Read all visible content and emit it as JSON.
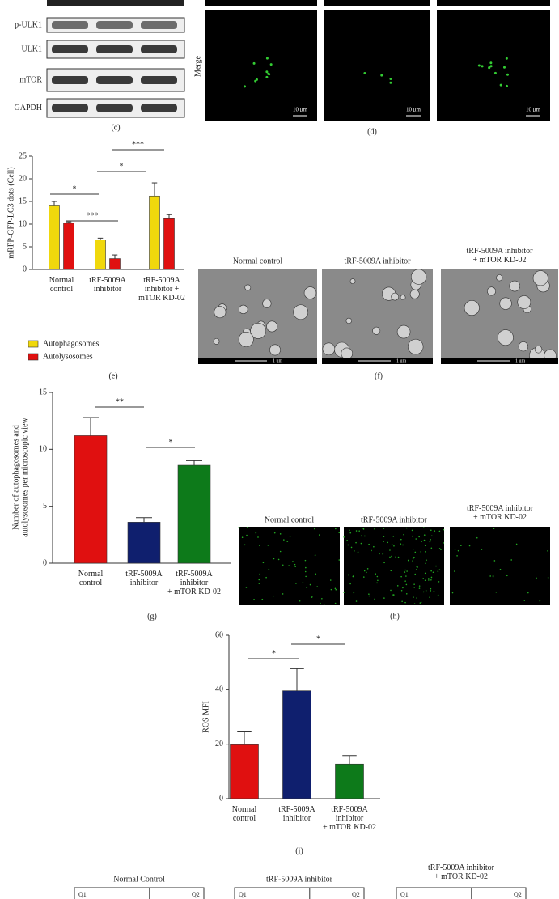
{
  "panel_c": {
    "rows": [
      "p-ULK1",
      "ULK1",
      "mTOR",
      "GAPDH"
    ],
    "caption": "(c)"
  },
  "panel_d": {
    "row_label": "Merge",
    "scale_bar": "10 μm",
    "caption": "(d)"
  },
  "chart_data": [
    {
      "type": "bar",
      "ylabel": "mRFP-GFP-LC3 dots (Cell)",
      "categories": [
        "Normal\ncontrol",
        "tRF-5009A\ninhibitor",
        "tRF-5009A\ninhibitor +\nmTOR KD-02"
      ],
      "series": [
        {
          "name": "Autophagosomes",
          "color": "#f0d80c",
          "values": [
            14.2,
            6.5,
            16.2
          ],
          "errors": [
            0.8,
            0.4,
            2.9
          ]
        },
        {
          "name": "Autolysosomes",
          "color": "#e01010",
          "values": [
            10.2,
            2.4,
            11.2
          ],
          "errors": [
            0.3,
            0.8,
            0.9
          ]
        }
      ],
      "ylim": [
        0,
        25
      ],
      "yticks": [
        0,
        5,
        10,
        15,
        20,
        25
      ],
      "annotations": [
        "***",
        "*",
        "*",
        "***"
      ],
      "caption": "(e)"
    },
    {
      "type": "bar",
      "ylabel": "Number of autophagosomes and\nautolysosomes per microscopic view",
      "categories": [
        "Normal\ncontrol",
        "tRF-5009A\ninhibitor",
        "tRF-5009A\ninhibitor\n+ mTOR KD-02"
      ],
      "values": [
        11.2,
        3.6,
        8.6
      ],
      "errors": [
        1.6,
        0.4,
        0.4
      ],
      "colors": [
        "#e01010",
        "#0f1f6e",
        "#0d7a1a"
      ],
      "ylim": [
        0,
        15
      ],
      "yticks": [
        0,
        5,
        10,
        15
      ],
      "annotations": [
        "**",
        "*"
      ],
      "caption": "(g)"
    },
    {
      "type": "bar",
      "ylabel": "ROS MFI",
      "categories": [
        "Normal\ncontrol",
        "tRF-5009A\ninhibitor",
        "tRF-5009A\ninhibitor\n+ mTOR KD-02"
      ],
      "values": [
        19.8,
        39.6,
        12.7
      ],
      "errors": [
        4.7,
        8.1,
        3.1
      ],
      "colors": [
        "#e01010",
        "#0f1f6e",
        "#0d7a1a"
      ],
      "ylim": [
        0,
        60
      ],
      "yticks": [
        0,
        20,
        40,
        60
      ],
      "annotations": [
        "*",
        "*"
      ],
      "caption": "(i)"
    }
  ],
  "panel_f": {
    "titles": [
      "Normal control",
      "tRF-5009A inhibitor",
      "tRF-5009A inhibitor\n+ mTOR KD-02"
    ],
    "scale_bar": "1 um",
    "caption": "(f)"
  },
  "panel_h": {
    "titles": [
      "Normal control",
      "tRF-5009A inhibitor",
      "tRF-5009A inhibitor\n+ mTOR KD-02"
    ],
    "caption": "(h)"
  },
  "panel_flow": {
    "titles": [
      "Normal Control",
      "tRF-5009A inhibitor",
      "tRF-5009A inhibitor\n+ mTOR KD-02"
    ],
    "quadrants": [
      "Q1",
      "Q2"
    ]
  }
}
